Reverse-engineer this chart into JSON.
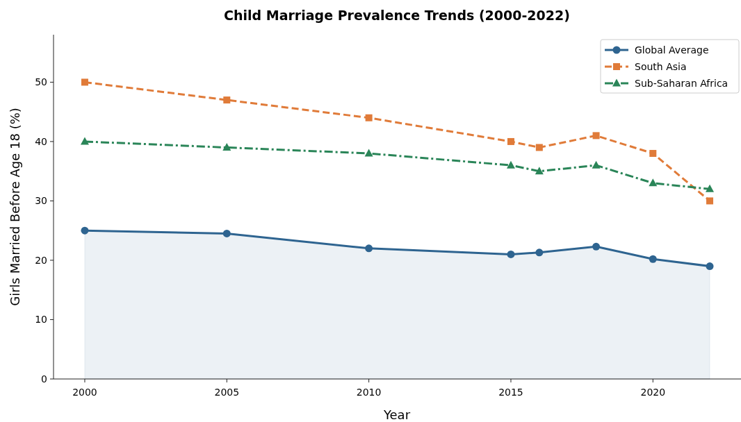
{
  "chart_data": {
    "type": "line",
    "title": "Child Marriage Prevalence Trends (2000-2022)",
    "xlabel": "Year",
    "ylabel": "Girls Married Before Age 18 (%)",
    "x": [
      2000,
      2005,
      2010,
      2015,
      2016,
      2018,
      2020,
      2022
    ],
    "series": [
      {
        "name": "Global Average",
        "type": "area",
        "color": "#2e6490",
        "marker": "circle",
        "line_style": "solid",
        "values": [
          25,
          24.5,
          22,
          21,
          21.3,
          22.3,
          20.2,
          19
        ]
      },
      {
        "name": "South Asia",
        "color": "#e07b39",
        "marker": "square",
        "line_style": "dashed",
        "values": [
          50,
          47,
          44,
          40,
          39,
          41,
          38,
          30
        ]
      },
      {
        "name": "Sub-Saharan Africa",
        "color": "#2a8558",
        "marker": "triangle",
        "line_style": "dashdot",
        "values": [
          40,
          39,
          38,
          36,
          35,
          36,
          33,
          32
        ]
      }
    ],
    "xlim": [
      1998.9,
      2023.1
    ],
    "xticks": [
      2000,
      2005,
      2010,
      2015,
      2020
    ],
    "ylim": [
      0,
      58
    ],
    "yticks": [
      0,
      10,
      20,
      30,
      40,
      50
    ],
    "grid": false,
    "legend": "top right"
  }
}
